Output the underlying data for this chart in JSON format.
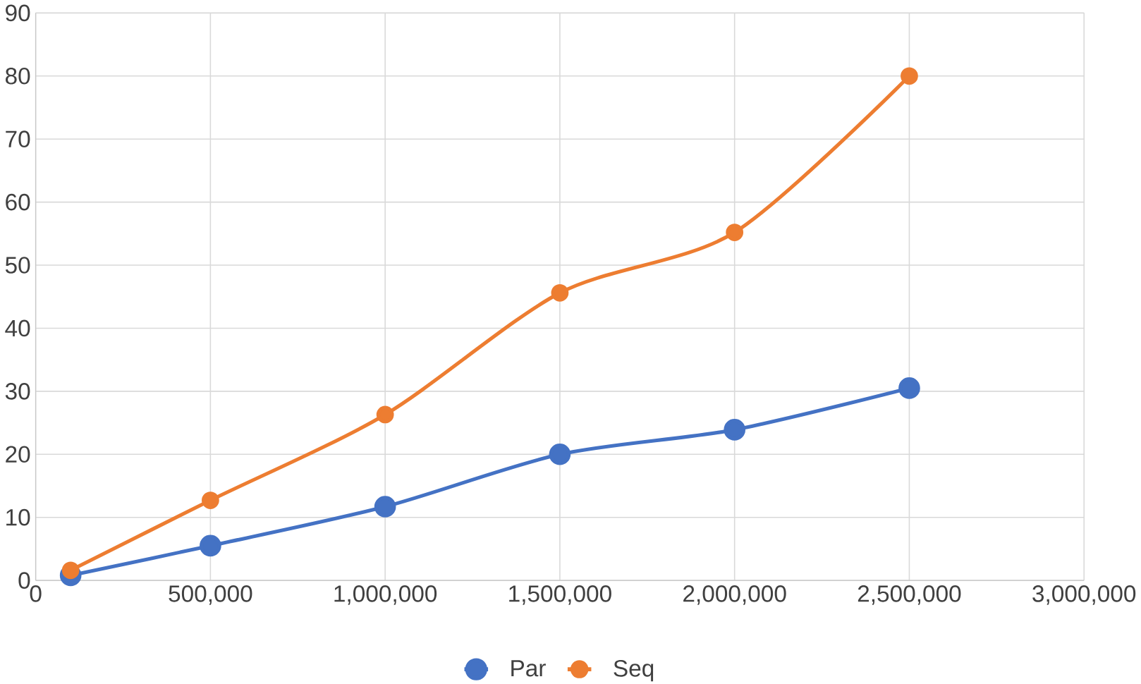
{
  "chart_data": {
    "type": "line",
    "x": [
      100000,
      500000,
      1000000,
      1500000,
      2000000,
      2500000
    ],
    "series": [
      {
        "name": "Par",
        "color": "#4472c4",
        "values": [
          0.8,
          5.5,
          11.7,
          20.0,
          23.9,
          30.5
        ]
      },
      {
        "name": "Seq",
        "color": "#ed7d31",
        "values": [
          1.6,
          12.7,
          26.3,
          45.6,
          55.2,
          80.0
        ]
      }
    ],
    "xlim": [
      0,
      3000000
    ],
    "xticks": [
      {
        "value": 0,
        "label": "0"
      },
      {
        "value": 500000,
        "label": "500,000"
      },
      {
        "value": 1000000,
        "label": "1,000,000"
      },
      {
        "value": 1500000,
        "label": "1,500,000"
      },
      {
        "value": 2000000,
        "label": "2,000,000"
      },
      {
        "value": 2500000,
        "label": "2,500,000"
      },
      {
        "value": 3000000,
        "label": "3,000,000"
      }
    ],
    "ylim": [
      0,
      90
    ],
    "yticks": [
      0,
      10,
      20,
      30,
      40,
      50,
      60,
      70,
      80,
      90
    ],
    "grid": true,
    "legend": "bottom",
    "marker": "circle",
    "line_style": "solid"
  }
}
